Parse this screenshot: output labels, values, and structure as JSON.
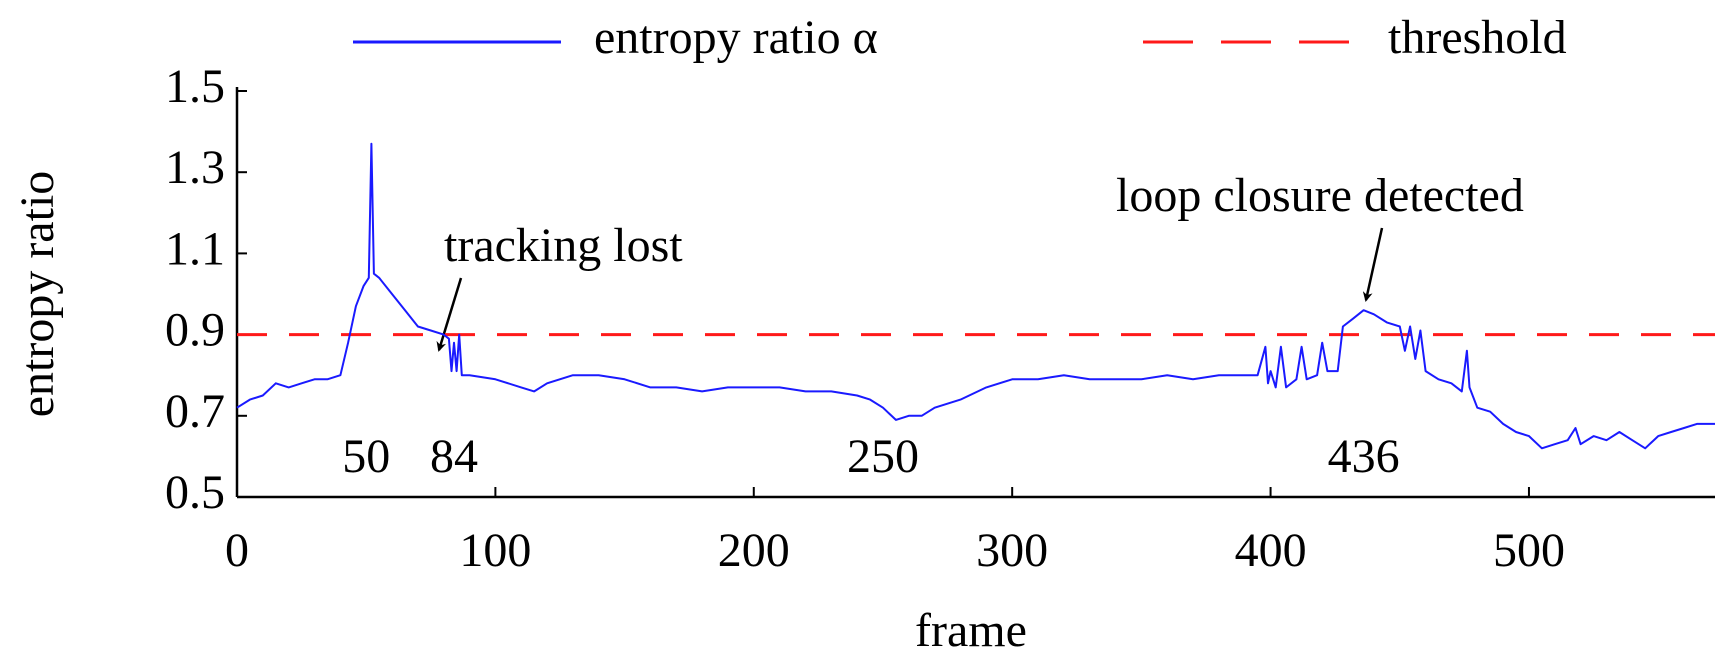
{
  "chart_data": {
    "type": "line",
    "xlabel": "frame",
    "ylabel": "entropy ratio",
    "xlim": [
      0,
      572
    ],
    "ylim": [
      0.5,
      1.5
    ],
    "xticks": [
      0,
      100,
      200,
      300,
      400,
      500
    ],
    "yticks": [
      0.5,
      0.7,
      0.9,
      1.1,
      1.3,
      1.5
    ],
    "series": [
      {
        "name": "entropy ratio α",
        "color": "#1a1aff",
        "x": [
          0,
          5,
          10,
          15,
          20,
          25,
          30,
          35,
          40,
          43,
          46,
          49,
          51,
          52,
          53,
          55,
          60,
          65,
          70,
          75,
          80,
          82,
          83,
          84,
          85,
          86,
          87,
          90,
          100,
          110,
          115,
          120,
          130,
          140,
          150,
          160,
          170,
          180,
          190,
          200,
          210,
          220,
          230,
          240,
          245,
          250,
          255,
          260,
          265,
          270,
          280,
          290,
          300,
          310,
          320,
          330,
          340,
          350,
          360,
          370,
          380,
          390,
          395,
          398,
          399,
          400,
          402,
          404,
          406,
          410,
          412,
          414,
          418,
          420,
          422,
          426,
          428,
          432,
          436,
          440,
          445,
          450,
          452,
          454,
          456,
          458,
          460,
          465,
          470,
          474,
          476,
          477,
          480,
          485,
          490,
          495,
          500,
          505,
          510,
          515,
          518,
          520,
          525,
          530,
          535,
          540,
          545,
          550,
          555,
          560,
          565,
          572
        ],
        "values": [
          0.72,
          0.74,
          0.75,
          0.78,
          0.77,
          0.78,
          0.79,
          0.79,
          0.8,
          0.88,
          0.97,
          1.02,
          1.04,
          1.37,
          1.05,
          1.04,
          1.0,
          0.96,
          0.92,
          0.91,
          0.9,
          0.89,
          0.81,
          0.88,
          0.81,
          0.9,
          0.8,
          0.8,
          0.79,
          0.77,
          0.76,
          0.78,
          0.8,
          0.8,
          0.79,
          0.77,
          0.77,
          0.76,
          0.77,
          0.77,
          0.77,
          0.76,
          0.76,
          0.75,
          0.74,
          0.72,
          0.69,
          0.7,
          0.7,
          0.72,
          0.74,
          0.77,
          0.79,
          0.79,
          0.8,
          0.79,
          0.79,
          0.79,
          0.8,
          0.79,
          0.8,
          0.8,
          0.8,
          0.87,
          0.78,
          0.81,
          0.77,
          0.87,
          0.77,
          0.79,
          0.87,
          0.79,
          0.8,
          0.88,
          0.81,
          0.81,
          0.92,
          0.94,
          0.96,
          0.95,
          0.93,
          0.92,
          0.86,
          0.92,
          0.84,
          0.91,
          0.81,
          0.79,
          0.78,
          0.76,
          0.86,
          0.77,
          0.72,
          0.71,
          0.68,
          0.66,
          0.65,
          0.62,
          0.63,
          0.64,
          0.67,
          0.63,
          0.65,
          0.64,
          0.66,
          0.64,
          0.62,
          0.65,
          0.66,
          0.67,
          0.68,
          0.68
        ]
      }
    ],
    "threshold": {
      "name": "threshold",
      "value": 0.9,
      "color": "#ff1a1a"
    },
    "frame_marks": [
      50,
      84,
      250,
      436
    ],
    "annotations": [
      "tracking lost",
      "loop closure detected"
    ]
  }
}
